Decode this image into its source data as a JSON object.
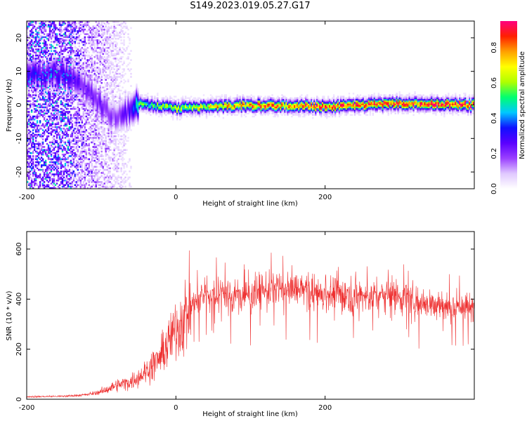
{
  "title": "S149.2023.019.05.27.G17",
  "colors": {
    "snr_line": "#ee2e2e",
    "frame": "#000000",
    "colormap": [
      "#ffffff",
      "#e0c8ff",
      "#9a40ff",
      "#5a00ff",
      "#1010ff",
      "#00c8ff",
      "#00ff70",
      "#b0ff00",
      "#ffff00",
      "#ffa000",
      "#ff2000",
      "#ff0080"
    ]
  },
  "chart_data": [
    {
      "type": "heatmap",
      "xlabel": "Height of straight line (km)",
      "ylabel": "Frequency (Hz)",
      "xlim": [
        -200,
        400
      ],
      "ylim": [
        -25,
        25
      ],
      "xticks": [
        -200,
        0,
        200
      ],
      "yticks": [
        -20,
        -10,
        0,
        10,
        20
      ],
      "colorbar": {
        "label": "Normalized spectral amplitude",
        "range": [
          0,
          0.95
        ],
        "ticks": [
          0.0,
          0.2,
          0.4,
          0.6,
          0.8
        ]
      },
      "dominant_frequency_track": {
        "x": [
          -140,
          -130,
          -120,
          -110,
          -100,
          -90,
          -80,
          -70,
          -60,
          -50,
          0,
          100,
          200,
          300,
          400
        ],
        "y": [
          9,
          7,
          5,
          2,
          0,
          -2,
          -3,
          -3,
          -1,
          0.5,
          -1,
          0,
          -0.5,
          0.5,
          0
        ],
        "amplitude": [
          0.3,
          0.25,
          0.25,
          0.25,
          0.25,
          0.2,
          0.2,
          0.25,
          0.3,
          0.5,
          0.6,
          0.8,
          0.85,
          0.9,
          0.9
        ]
      }
    },
    {
      "type": "line",
      "xlabel": "Height of straight line (km)",
      "ylabel": "SNR (10 * v/v)",
      "xlim": [
        -200,
        400
      ],
      "ylim": [
        0,
        670
      ],
      "xticks": [
        -200,
        0,
        200
      ],
      "yticks": [
        0,
        200,
        400,
        600
      ],
      "series": [
        {
          "x": [
            -200,
            -150,
            -120,
            -100,
            -80,
            -60,
            -40,
            -20,
            0,
            20,
            40,
            60,
            80,
            100,
            120,
            140,
            160,
            180,
            200,
            220,
            240,
            260,
            280,
            300,
            320,
            340,
            360,
            380,
            400
          ],
          "y": [
            10,
            12,
            18,
            30,
            55,
            70,
            110,
            170,
            280,
            370,
            420,
            430,
            410,
            420,
            440,
            440,
            440,
            430,
            420,
            420,
            420,
            410,
            420,
            410,
            400,
            380,
            370,
            370,
            360
          ]
        }
      ]
    }
  ]
}
